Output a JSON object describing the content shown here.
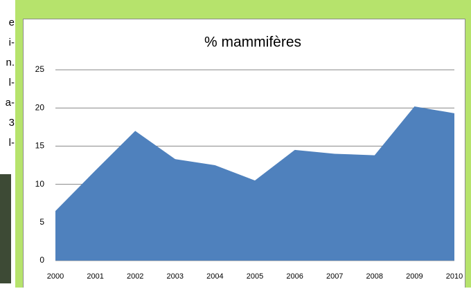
{
  "left_text": [
    "e",
    "i-",
    "n.",
    "l-",
    "a-",
    "3",
    "l-"
  ],
  "chart_data": {
    "type": "area",
    "title": "% mammifères",
    "categories": [
      "2000",
      "2001",
      "2002",
      "2003",
      "2004",
      "2005",
      "2006",
      "2007",
      "2008",
      "2009",
      "2010"
    ],
    "values": [
      6.5,
      11.8,
      17,
      13.3,
      12.5,
      10.5,
      14.5,
      14,
      13.8,
      20.2,
      19.3
    ],
    "color": "#4f81bd",
    "ylim": [
      0,
      25
    ],
    "yticks": [
      0,
      5,
      10,
      15,
      20,
      25
    ],
    "grid": true
  }
}
